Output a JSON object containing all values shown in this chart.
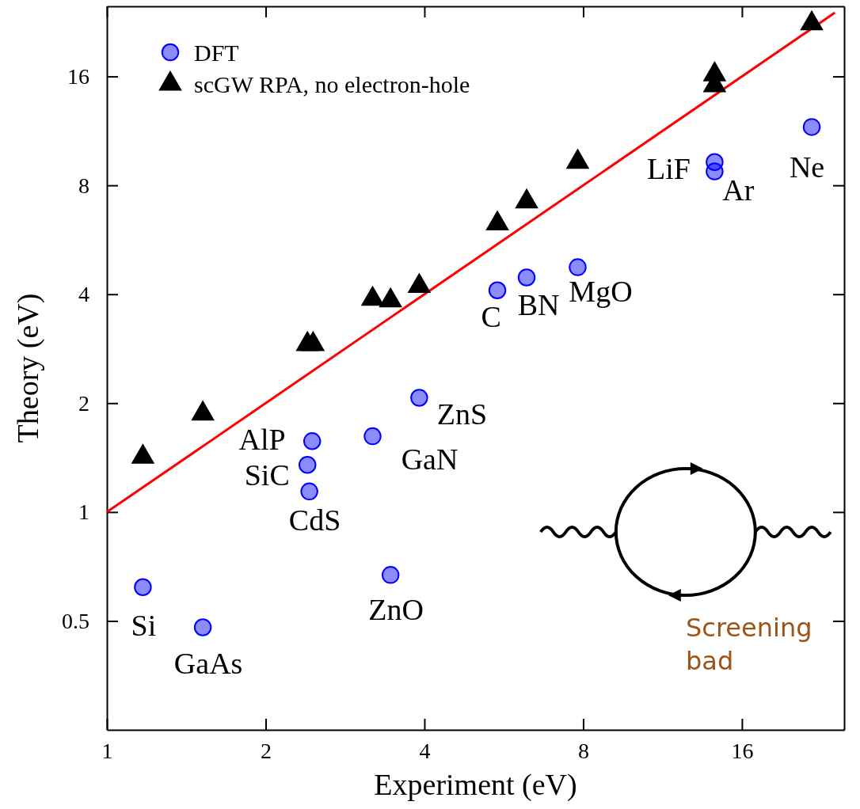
{
  "chart_data": {
    "type": "scatter",
    "xlabel": "Experiment (eV)",
    "ylabel": "Theory (eV)",
    "log": "xy",
    "xlim": [
      1,
      25
    ],
    "ylim": [
      0.25,
      25
    ],
    "xticks": [
      1,
      2,
      4,
      8,
      16
    ],
    "yticks": [
      0.5,
      1,
      2,
      4,
      8,
      16
    ],
    "grid": false,
    "legend": "top left",
    "series": [
      {
        "name": "DFT",
        "marker": "circle",
        "color": "#0000ff",
        "x": [
          1.17,
          1.52,
          2.45,
          2.4,
          2.42,
          3.19,
          3.91,
          3.45,
          5.5,
          6.25,
          7.81,
          14.2,
          14.2,
          21.7
        ],
        "values": [
          0.62,
          0.48,
          1.57,
          1.35,
          1.14,
          1.62,
          2.07,
          0.67,
          4.1,
          4.45,
          4.75,
          9.28,
          8.74,
          11.6
        ]
      },
      {
        "name": "scGW RPA, no electron-hole",
        "marker": "triangle",
        "color": "#000000",
        "x": [
          1.17,
          1.52,
          2.4,
          2.46,
          3.19,
          3.45,
          3.91,
          5.5,
          6.25,
          7.81,
          14.2,
          14.2,
          21.7
        ],
        "values": [
          1.42,
          1.87,
          2.91,
          2.91,
          3.88,
          3.84,
          4.21,
          6.27,
          7.21,
          9.28,
          16.2,
          15.1,
          22.4
        ]
      },
      {
        "type": "line",
        "marker": "none",
        "line_style": "solid",
        "color": "#ff0000",
        "x": [
          1,
          24
        ],
        "values": [
          1,
          24
        ]
      }
    ],
    "annotations": [
      {
        "text": "Si",
        "x": 1.17,
        "y": 0.62
      },
      {
        "text": "GaAs",
        "x": 1.52,
        "y": 0.48
      },
      {
        "text": "AlP",
        "x": 2.45,
        "y": 1.57
      },
      {
        "text": "SiC",
        "x": 2.4,
        "y": 1.35
      },
      {
        "text": "CdS",
        "x": 2.42,
        "y": 1.14
      },
      {
        "text": "GaN",
        "x": 3.19,
        "y": 1.62
      },
      {
        "text": "ZnS",
        "x": 3.91,
        "y": 2.07
      },
      {
        "text": "ZnO",
        "x": 3.45,
        "y": 0.67
      },
      {
        "text": "C",
        "x": 5.5,
        "y": 4.1
      },
      {
        "text": "BN",
        "x": 6.25,
        "y": 4.45
      },
      {
        "text": "MgO",
        "x": 7.81,
        "y": 4.75
      },
      {
        "text": "LiF",
        "x": 14.2,
        "y": 9.28
      },
      {
        "text": "Ar",
        "x": 14.2,
        "y": 8.74
      },
      {
        "text": "Ne",
        "x": 21.7,
        "y": 11.6
      },
      "Screening bad"
    ]
  }
}
